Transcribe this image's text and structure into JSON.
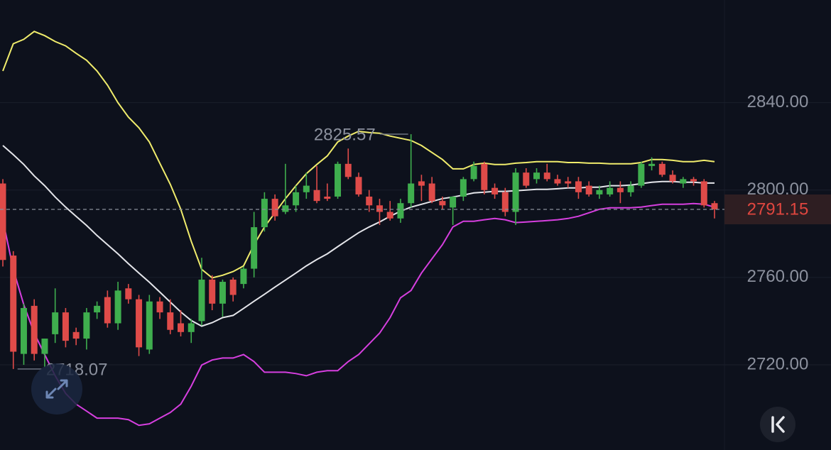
{
  "chart_data": {
    "type": "candlestick",
    "open": [
      2803,
      2770,
      2725,
      2747,
      2725,
      2734,
      2744,
      2735,
      2732,
      2744,
      2751,
      2739,
      2755,
      2750,
      2727,
      2749,
      2744,
      2739,
      2735,
      2740,
      2759,
      2748,
      2759,
      2757,
      2764,
      2783,
      2796,
      2790,
      2793,
      2799,
      2800,
      2797,
      2797,
      2812,
      2806,
      2797,
      2793,
      2790,
      2787,
      2794,
      2804,
      2803,
      2795,
      2792,
      2797,
      2805,
      2812,
      2801,
      2799,
      2790,
      2808,
      2805,
      2808,
      2805,
      2804,
      2804,
      2802,
      2798,
      2798,
      2801,
      2799,
      2802,
      2811,
      2812,
      2807,
      2803,
      2805,
      2804,
      2794
    ],
    "high": [
      2805,
      2772,
      2748,
      2750,
      2732,
      2755,
      2746,
      2737,
      2746,
      2749,
      2754,
      2758,
      2757,
      2752,
      2752,
      2751,
      2750,
      2745,
      2741,
      2769,
      2761,
      2759,
      2760,
      2765,
      2790,
      2799,
      2798,
      2812,
      2802,
      2808,
      2811,
      2803,
      2813,
      2819,
      2808,
      2800,
      2796,
      2795,
      2796,
      2825.57,
      2807,
      2806,
      2797,
      2797,
      2806,
      2813,
      2813,
      2803,
      2801,
      2810,
      2810,
      2810,
      2812,
      2807,
      2806,
      2806,
      2804,
      2802,
      2804,
      2804,
      2804,
      2813,
      2815,
      2813,
      2809,
      2806,
      2806,
      2805,
      2795
    ],
    "low": [
      2765,
      2718.07,
      2720,
      2722,
      2719,
      2730,
      2728,
      2729,
      2727,
      2741,
      2737,
      2736,
      2748,
      2724,
      2725,
      2741,
      2734,
      2733,
      2730,
      2738,
      2745,
      2742,
      2749,
      2755,
      2760,
      2781,
      2786,
      2789,
      2790,
      2796,
      2794,
      2795,
      2796,
      2805,
      2797,
      2790,
      2784,
      2786,
      2785,
      2792,
      2795,
      2794,
      2791,
      2784,
      2795,
      2804,
      2798,
      2796,
      2788,
      2784,
      2801,
      2803,
      2804,
      2802,
      2801,
      2796,
      2797,
      2796,
      2797,
      2794,
      2797,
      2801,
      2809,
      2806,
      2803,
      2801,
      2802,
      2792,
      2787
    ],
    "close": [
      2768,
      2726,
      2746,
      2725,
      2732,
      2744,
      2731,
      2732,
      2744,
      2747,
      2739,
      2754,
      2750,
      2728,
      2749,
      2744,
      2736,
      2735,
      2739,
      2759,
      2748,
      2758,
      2752,
      2764,
      2783,
      2796,
      2788,
      2793,
      2799,
      2802,
      2795,
      2796,
      2812,
      2806,
      2798,
      2793,
      2790,
      2787,
      2794,
      2803,
      2802,
      2795,
      2793,
      2797,
      2805,
      2811,
      2800,
      2798,
      2790,
      2808,
      2802,
      2808,
      2805,
      2803,
      2803,
      2799,
      2798,
      2800,
      2801,
      2799,
      2802,
      2812,
      2812,
      2807,
      2804,
      2805,
      2804,
      2793,
      2791.15
    ],
    "up_color": "#3fae4e",
    "down_color": "#df4b49",
    "overlays": [
      {
        "color": "#f0ec6c",
        "values": [
          2854.5,
          2867,
          2869,
          2872.6,
          2870.7,
          2868,
          2866,
          2862.6,
          2859.4,
          2854.5,
          2848,
          2840,
          2833.4,
          2828.5,
          2822,
          2812.3,
          2802.6,
          2791.2,
          2776.6,
          2763.7,
          2759.8,
          2761,
          2762.7,
          2765.3,
          2775,
          2783.1,
          2789.6,
          2796.1,
          2802,
          2807.5,
          2811.7,
          2815.6,
          2822,
          2824.7,
          2826.9,
          2826.3,
          2826,
          2824.7,
          2823.7,
          2822.7,
          2820.4,
          2817.2,
          2814,
          2809.7,
          2809.7,
          2811.7,
          2812.3,
          2811.7,
          2811.7,
          2812.3,
          2812.6,
          2813,
          2813,
          2813,
          2812.6,
          2812.6,
          2812.3,
          2812.3,
          2812,
          2812,
          2812,
          2812.6,
          2814,
          2814,
          2813.6,
          2813,
          2813,
          2813.6,
          2813
        ]
      },
      {
        "color": "#e4e5ea",
        "values": [
          2820.4,
          2816.2,
          2811.7,
          2806.5,
          2802,
          2796.8,
          2792.2,
          2788,
          2783.8,
          2779.2,
          2775,
          2770.8,
          2766.3,
          2762,
          2757.8,
          2753.3,
          2748.7,
          2744.2,
          2740.3,
          2737.7,
          2739.3,
          2741.6,
          2742.6,
          2745.8,
          2749.1,
          2752.3,
          2755.6,
          2758.8,
          2762,
          2765.3,
          2768.2,
          2770.8,
          2774.1,
          2777.3,
          2780.5,
          2783.1,
          2785.4,
          2788,
          2790.3,
          2792.2,
          2793.5,
          2794.8,
          2796.1,
          2796.8,
          2797.7,
          2798.7,
          2799,
          2799.4,
          2799.4,
          2799.7,
          2800,
          2800.3,
          2800.3,
          2800.6,
          2801,
          2801,
          2801.3,
          2801.3,
          2802,
          2802,
          2802.3,
          2802.9,
          2803.6,
          2803.9,
          2803.9,
          2803.6,
          2803.6,
          2803.2,
          2803.2
        ]
      },
      {
        "color": "#d63fdf",
        "values": [
          2786.4,
          2763.7,
          2747.5,
          2734.5,
          2724.7,
          2715,
          2706.9,
          2702,
          2698.8,
          2695.6,
          2695.6,
          2695.6,
          2694.9,
          2692.3,
          2693,
          2695.6,
          2698.2,
          2702,
          2710.2,
          2719.9,
          2722.2,
          2723.1,
          2723.1,
          2724.7,
          2721.5,
          2716.6,
          2716.6,
          2716.6,
          2716,
          2715,
          2716.6,
          2717.3,
          2717.3,
          2721.5,
          2724.7,
          2729.6,
          2734.5,
          2741.6,
          2750.7,
          2754,
          2762,
          2768.5,
          2775,
          2783.1,
          2785.7,
          2785.7,
          2786.4,
          2787,
          2786.4,
          2785.1,
          2785.4,
          2785.7,
          2786,
          2786.4,
          2787,
          2788,
          2789.6,
          2791.2,
          2791.9,
          2791.9,
          2791.9,
          2792.2,
          2792.9,
          2793.5,
          2793.5,
          2793.5,
          2793.8,
          2793.5,
          2792.2
        ]
      }
    ],
    "ylim": [
      2681,
      2887
    ],
    "yticks": [
      {
        "value": 2720,
        "label": "2720.00"
      },
      {
        "value": 2760,
        "label": "2760.00"
      },
      {
        "value": 2800,
        "label": "2800.00"
      },
      {
        "value": 2840,
        "label": "2840.00"
      }
    ],
    "grid": true,
    "max_price": 2825.57,
    "min_price": 2718.07,
    "last_price": 2791.15
  }
}
